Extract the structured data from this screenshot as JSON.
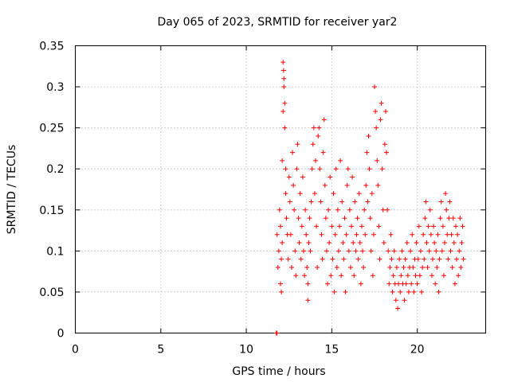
{
  "chart_data": {
    "type": "scatter",
    "title": "Day 065 of 2023, SRMTID for receiver yar2",
    "xlabel": "GPS time / hours",
    "ylabel": "SRMTID / TECUs",
    "xlim": [
      0,
      24
    ],
    "ylim": [
      0,
      0.35
    ],
    "xticks": [
      0,
      5,
      10,
      15,
      20
    ],
    "yticks": [
      0,
      0.05,
      0.1,
      0.15,
      0.2,
      0.25,
      0.3,
      0.35
    ],
    "ytick_labels": [
      "0",
      "0.05",
      "0.1",
      "0.15",
      "0.2",
      "0.25",
      "0.3",
      "0.35"
    ],
    "grid": true,
    "legend": "none",
    "series": [
      {
        "name": "yar2",
        "color": "#ff0000",
        "marker": "plus",
        "points": [
          [
            11.75,
            0.0
          ],
          [
            11.8,
            0.0
          ],
          [
            11.8,
            0.12
          ],
          [
            11.85,
            0.08
          ],
          [
            11.9,
            0.1
          ],
          [
            11.95,
            0.15
          ],
          [
            12.0,
            0.06
          ],
          [
            12.0,
            0.13
          ],
          [
            12.05,
            0.05
          ],
          [
            12.05,
            0.09
          ],
          [
            12.1,
            0.11
          ],
          [
            12.1,
            0.21
          ],
          [
            12.15,
            0.27
          ],
          [
            12.15,
            0.33
          ],
          [
            12.18,
            0.32
          ],
          [
            12.2,
            0.31
          ],
          [
            12.2,
            0.3
          ],
          [
            12.25,
            0.28
          ],
          [
            12.25,
            0.25
          ],
          [
            12.3,
            0.2
          ],
          [
            12.3,
            0.17
          ],
          [
            12.35,
            0.14
          ],
          [
            12.4,
            0.12
          ],
          [
            12.45,
            0.09
          ],
          [
            12.5,
            0.19
          ],
          [
            12.55,
            0.16
          ],
          [
            12.6,
            0.12
          ],
          [
            12.65,
            0.08
          ],
          [
            12.7,
            0.22
          ],
          [
            12.75,
            0.18
          ],
          [
            12.8,
            0.15
          ],
          [
            12.85,
            0.1
          ],
          [
            12.9,
            0.07
          ],
          [
            12.95,
            0.2
          ],
          [
            13.0,
            0.23
          ],
          [
            13.05,
            0.14
          ],
          [
            13.1,
            0.11
          ],
          [
            13.15,
            0.17
          ],
          [
            13.2,
            0.09
          ],
          [
            13.25,
            0.13
          ],
          [
            13.3,
            0.19
          ],
          [
            13.35,
            0.1
          ],
          [
            13.4,
            0.07
          ],
          [
            13.45,
            0.15
          ],
          [
            13.5,
            0.12
          ],
          [
            13.55,
            0.08
          ],
          [
            13.6,
            0.04
          ],
          [
            13.6,
            0.06
          ],
          [
            13.65,
            0.11
          ],
          [
            13.7,
            0.14
          ],
          [
            13.75,
            0.1
          ],
          [
            13.8,
            0.16
          ],
          [
            13.85,
            0.2
          ],
          [
            13.9,
            0.23
          ],
          [
            13.95,
            0.25
          ],
          [
            14.0,
            0.17
          ],
          [
            14.05,
            0.21
          ],
          [
            14.1,
            0.13
          ],
          [
            14.15,
            0.08
          ],
          [
            14.2,
            0.24
          ],
          [
            14.25,
            0.25
          ],
          [
            14.3,
            0.2
          ],
          [
            14.35,
            0.16
          ],
          [
            14.4,
            0.12
          ],
          [
            14.45,
            0.09
          ],
          [
            14.5,
            0.22
          ],
          [
            14.55,
            0.26
          ],
          [
            14.6,
            0.18
          ],
          [
            14.65,
            0.14
          ],
          [
            14.7,
            0.1
          ],
          [
            14.75,
            0.06
          ],
          [
            14.8,
            0.15
          ],
          [
            14.85,
            0.11
          ],
          [
            14.9,
            0.19
          ],
          [
            14.95,
            0.07
          ],
          [
            15.0,
            0.13
          ],
          [
            15.05,
            0.09
          ],
          [
            15.1,
            0.17
          ],
          [
            15.15,
            0.05
          ],
          [
            15.2,
            0.12
          ],
          [
            15.25,
            0.2
          ],
          [
            15.3,
            0.08
          ],
          [
            15.35,
            0.15
          ],
          [
            15.4,
            0.1
          ],
          [
            15.45,
            0.13
          ],
          [
            15.5,
            0.21
          ],
          [
            15.55,
            0.07
          ],
          [
            15.6,
            0.16
          ],
          [
            15.65,
            0.11
          ],
          [
            15.7,
            0.09
          ],
          [
            15.75,
            0.14
          ],
          [
            15.8,
            0.05
          ],
          [
            15.85,
            0.12
          ],
          [
            15.9,
            0.18
          ],
          [
            15.95,
            0.2
          ],
          [
            16.0,
            0.1
          ],
          [
            16.05,
            0.15
          ],
          [
            16.1,
            0.08
          ],
          [
            16.15,
            0.13
          ],
          [
            16.2,
            0.19
          ],
          [
            16.25,
            0.11
          ],
          [
            16.3,
            0.07
          ],
          [
            16.35,
            0.16
          ],
          [
            16.4,
            0.1
          ],
          [
            16.45,
            0.12
          ],
          [
            16.5,
            0.14
          ],
          [
            16.55,
            0.09
          ],
          [
            16.6,
            0.17
          ],
          [
            16.65,
            0.11
          ],
          [
            16.7,
            0.06
          ],
          [
            16.75,
            0.13
          ],
          [
            16.8,
            0.1
          ],
          [
            16.85,
            0.08
          ],
          [
            16.9,
            0.15
          ],
          [
            16.95,
            0.12
          ],
          [
            17.0,
            0.18
          ],
          [
            17.05,
            0.22
          ],
          [
            17.1,
            0.16
          ],
          [
            17.15,
            0.24
          ],
          [
            17.2,
            0.2
          ],
          [
            17.25,
            0.14
          ],
          [
            17.3,
            0.1
          ],
          [
            17.35,
            0.17
          ],
          [
            17.4,
            0.07
          ],
          [
            17.45,
            0.12
          ],
          [
            17.5,
            0.3
          ],
          [
            17.55,
            0.27
          ],
          [
            17.6,
            0.25
          ],
          [
            17.65,
            0.21
          ],
          [
            17.7,
            0.18
          ],
          [
            17.75,
            0.13
          ],
          [
            17.8,
            0.09
          ],
          [
            17.85,
            0.26
          ],
          [
            17.9,
            0.28
          ],
          [
            17.95,
            0.2
          ],
          [
            18.0,
            0.15
          ],
          [
            18.05,
            0.11
          ],
          [
            18.1,
            0.23
          ],
          [
            18.15,
            0.27
          ],
          [
            18.2,
            0.22
          ],
          [
            18.25,
            0.15
          ],
          [
            18.3,
            0.1
          ],
          [
            18.35,
            0.06
          ],
          [
            18.4,
            0.08
          ],
          [
            18.45,
            0.12
          ],
          [
            18.5,
            0.09
          ],
          [
            18.55,
            0.05
          ],
          [
            18.6,
            0.07
          ],
          [
            18.65,
            0.1
          ],
          [
            18.7,
            0.06
          ],
          [
            18.75,
            0.04
          ],
          [
            18.8,
            0.08
          ],
          [
            18.85,
            0.03
          ],
          [
            18.9,
            0.06
          ],
          [
            18.95,
            0.09
          ],
          [
            19.0,
            0.05
          ],
          [
            19.05,
            0.07
          ],
          [
            19.1,
            0.1
          ],
          [
            19.15,
            0.06
          ],
          [
            19.2,
            0.08
          ],
          [
            19.25,
            0.04
          ],
          [
            19.3,
            0.09
          ],
          [
            19.35,
            0.06
          ],
          [
            19.4,
            0.11
          ],
          [
            19.45,
            0.07
          ],
          [
            19.5,
            0.05
          ],
          [
            19.55,
            0.08
          ],
          [
            19.6,
            0.1
          ],
          [
            19.65,
            0.06
          ],
          [
            19.7,
            0.12
          ],
          [
            19.75,
            0.08
          ],
          [
            19.8,
            0.05
          ],
          [
            19.85,
            0.09
          ],
          [
            19.9,
            0.07
          ],
          [
            19.95,
            0.11
          ],
          [
            20.0,
            0.06
          ],
          [
            20.05,
            0.09
          ],
          [
            20.1,
            0.13
          ],
          [
            20.15,
            0.07
          ],
          [
            20.2,
            0.1
          ],
          [
            20.25,
            0.05
          ],
          [
            20.3,
            0.08
          ],
          [
            20.35,
            0.12
          ],
          [
            20.4,
            0.09
          ],
          [
            20.45,
            0.14
          ],
          [
            20.5,
            0.16
          ],
          [
            20.55,
            0.11
          ],
          [
            20.6,
            0.08
          ],
          [
            20.65,
            0.13
          ],
          [
            20.7,
            0.1
          ],
          [
            20.75,
            0.15
          ],
          [
            20.8,
            0.12
          ],
          [
            20.85,
            0.07
          ],
          [
            20.9,
            0.09
          ],
          [
            20.95,
            0.13
          ],
          [
            21.0,
            0.11
          ],
          [
            21.05,
            0.06
          ],
          [
            21.1,
            0.1
          ],
          [
            21.15,
            0.08
          ],
          [
            21.2,
            0.12
          ],
          [
            21.25,
            0.05
          ],
          [
            21.3,
            0.09
          ],
          [
            21.35,
            0.14
          ],
          [
            21.4,
            0.16
          ],
          [
            21.45,
            0.1
          ],
          [
            21.5,
            0.13
          ],
          [
            21.55,
            0.07
          ],
          [
            21.6,
            0.11
          ],
          [
            21.65,
            0.17
          ],
          [
            21.7,
            0.15
          ],
          [
            21.75,
            0.12
          ],
          [
            21.8,
            0.09
          ],
          [
            21.85,
            0.14
          ],
          [
            21.9,
            0.16
          ],
          [
            21.95,
            0.1
          ],
          [
            22.0,
            0.12
          ],
          [
            22.05,
            0.08
          ],
          [
            22.1,
            0.14
          ],
          [
            22.15,
            0.11
          ],
          [
            22.2,
            0.06
          ],
          [
            22.25,
            0.13
          ],
          [
            22.3,
            0.09
          ],
          [
            22.35,
            0.12
          ],
          [
            22.4,
            0.07
          ],
          [
            22.45,
            0.1
          ],
          [
            22.5,
            0.14
          ],
          [
            22.55,
            0.08
          ],
          [
            22.6,
            0.11
          ],
          [
            22.65,
            0.13
          ],
          [
            22.7,
            0.09
          ]
        ]
      }
    ]
  }
}
